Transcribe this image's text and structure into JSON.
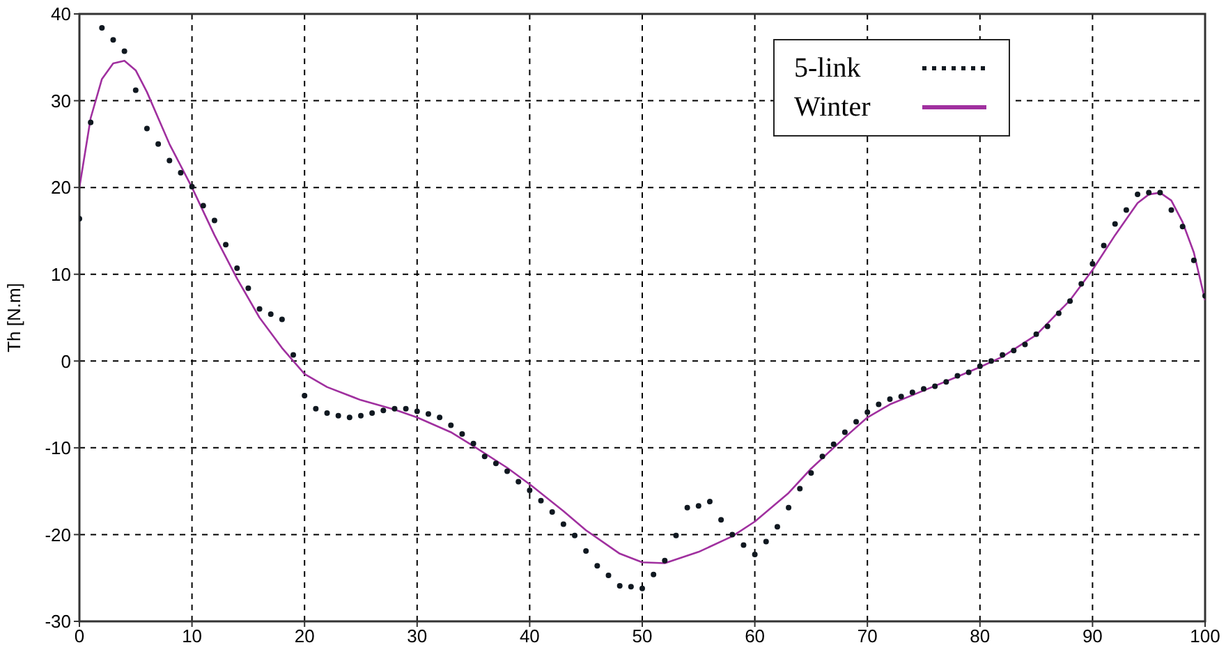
{
  "chart_data": {
    "type": "line",
    "ylabel": "Th [N.m]",
    "xlim": [
      0,
      100
    ],
    "xticks": [
      0,
      10,
      20,
      30,
      40,
      50,
      60,
      70,
      80,
      90,
      100
    ],
    "ylim": [
      -30,
      40
    ],
    "yticks": [
      -30,
      -20,
      -10,
      0,
      10,
      20,
      30,
      40
    ],
    "grid": true,
    "legend": "top right",
    "series": [
      {
        "name": "5-link",
        "type": "scatter",
        "marker": "circle",
        "color": "#101820",
        "x": [
          0,
          1,
          2,
          3,
          4,
          5,
          6,
          7,
          8,
          9,
          10,
          11,
          12,
          13,
          14,
          15,
          16,
          17,
          18,
          19,
          20,
          21,
          22,
          23,
          24,
          25,
          26,
          27,
          28,
          29,
          30,
          31,
          32,
          33,
          34,
          35,
          36,
          37,
          38,
          39,
          40,
          41,
          42,
          43,
          44,
          45,
          46,
          47,
          48,
          49,
          50,
          51,
          52,
          53,
          54,
          55,
          56,
          57,
          58,
          59,
          60,
          61,
          62,
          63,
          64,
          65,
          66,
          67,
          68,
          69,
          70,
          71,
          72,
          73,
          74,
          75,
          76,
          77,
          78,
          79,
          80,
          81,
          82,
          83,
          84,
          85,
          86,
          87,
          88,
          89,
          90,
          91,
          92,
          93,
          94,
          95,
          96,
          97,
          98,
          99,
          100
        ],
        "values": [
          16.4,
          27.5,
          38.4,
          37.0,
          35.7,
          31.2,
          26.8,
          25.0,
          23.1,
          21.7,
          20.1,
          17.9,
          16.2,
          13.4,
          10.7,
          8.4,
          6.0,
          5.4,
          4.8,
          0.7,
          -4.0,
          -5.5,
          -6.0,
          -6.3,
          -6.5,
          -6.3,
          -6.0,
          -5.7,
          -5.5,
          -5.5,
          -5.8,
          -6.1,
          -6.5,
          -7.4,
          -8.4,
          -9.5,
          -11.0,
          -11.8,
          -12.7,
          -13.9,
          -14.9,
          -16.1,
          -17.4,
          -18.8,
          -20.1,
          -21.9,
          -23.6,
          -24.7,
          -25.9,
          -26.0,
          -26.2,
          -24.6,
          -23.0,
          -20.1,
          -16.9,
          -16.7,
          -16.2,
          -18.3,
          -20.0,
          -21.2,
          -22.3,
          -20.8,
          -19.1,
          -16.9,
          -14.7,
          -12.9,
          -11.0,
          -9.6,
          -8.2,
          -7.0,
          -5.9,
          -5.0,
          -4.4,
          -4.1,
          -3.6,
          -3.2,
          -2.9,
          -2.4,
          -1.7,
          -1.3,
          -0.6,
          0,
          0.7,
          1.2,
          1.9,
          3.1,
          4.0,
          5.5,
          6.9,
          8.9,
          11.2,
          13.3,
          15.8,
          17.4,
          19.2,
          19.4,
          19.4,
          17.4,
          15.5,
          11.6,
          7.5
        ]
      },
      {
        "name": "Winter",
        "marker": "none",
        "line_style": "solid",
        "color": "#a0309f",
        "x": [
          0,
          1,
          2,
          3,
          4,
          5,
          6,
          7,
          8,
          10,
          12,
          14,
          16,
          18,
          20,
          22,
          25,
          28,
          30,
          33,
          35,
          38,
          40,
          43,
          45,
          48,
          50,
          52,
          55,
          58,
          60,
          63,
          65,
          68,
          70,
          72,
          75,
          78,
          80,
          82,
          85,
          88,
          90,
          92,
          94,
          95,
          96,
          97,
          98,
          99,
          100
        ],
        "values": [
          20,
          28,
          32.5,
          34.3,
          34.6,
          33.5,
          31,
          28,
          25,
          20,
          14.5,
          9.5,
          5,
          1.5,
          -1.5,
          -3,
          -4.5,
          -5.6,
          -6.5,
          -8.2,
          -9.8,
          -12.3,
          -14.2,
          -17.3,
          -19.5,
          -22.2,
          -23.2,
          -23.3,
          -22,
          -20.2,
          -18.5,
          -15.2,
          -12.4,
          -8.8,
          -6.5,
          -5,
          -3.4,
          -1.8,
          -0.7,
          0.5,
          3,
          7,
          10.5,
          14.5,
          18.2,
          19.2,
          19.4,
          18.5,
          16,
          12.5,
          7
        ]
      }
    ]
  }
}
